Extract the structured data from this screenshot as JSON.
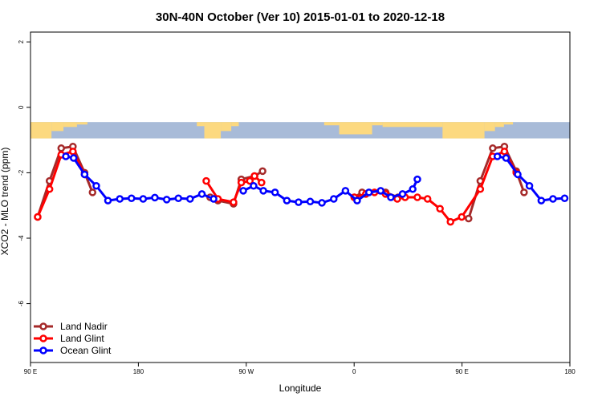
{
  "chart_data": {
    "type": "line",
    "title": "30N-40N October (Ver 10)   2015-01-01 to 2020-12-18",
    "xlabel": "Longitude",
    "ylabel": "XCO2 - MLO trend (ppm)",
    "xlim": [
      90,
      450
    ],
    "ylim": [
      -7.8,
      2.3
    ],
    "x_ticks": [
      {
        "value": 90,
        "label": "90 E"
      },
      {
        "value": 162,
        "label": "180"
      },
      {
        "value": 234,
        "label": "90 W"
      },
      {
        "value": 306,
        "label": "0"
      },
      {
        "value": 378,
        "label": "90 E"
      },
      {
        "value": 450,
        "label": "180"
      }
    ],
    "y_ticks": [
      2,
      0,
      -2,
      -4,
      -6
    ],
    "map_strip": {
      "y_top": -0.45,
      "y_bottom": -0.95,
      "ocean_color": "#a8bbd8",
      "land_color": "#fcd980"
    },
    "legend_position": "bottom-left",
    "series": [
      {
        "name": "Land Nadir",
        "color": "#a52a2a",
        "points": [
          [
            94.8,
            -3.35
          ],
          [
            102.7,
            -2.25
          ],
          [
            110.5,
            -1.25
          ],
          [
            118.3,
            -1.2
          ],
          [
            126.1,
            -2.0
          ],
          [
            131.4,
            -2.6
          ],
          [
            209.9,
            -2.75
          ],
          [
            215.1,
            -2.85
          ],
          [
            225.5,
            -2.95
          ],
          [
            230.7,
            -2.2
          ],
          [
            239.5,
            -2.1
          ],
          [
            244.9,
            -1.95
          ],
          [
            306.1,
            -2.75
          ],
          [
            311.3,
            -2.6
          ],
          [
            327.0,
            -2.6
          ],
          [
            335.3,
            -2.75
          ],
          [
            382.4,
            -3.4
          ],
          [
            390.2,
            -2.25
          ],
          [
            398.5,
            -1.25
          ],
          [
            406.3,
            -1.2
          ],
          [
            414.2,
            -1.95
          ],
          [
            419.4,
            -2.6
          ]
        ]
      },
      {
        "name": "Land Glint",
        "color": "#ff0000",
        "points": [
          [
            94.8,
            -3.35
          ],
          [
            102.7,
            -2.5
          ],
          [
            110.5,
            -1.45
          ],
          [
            118.3,
            -1.35
          ],
          [
            126.1,
            -2.05
          ],
          [
            207.3,
            -2.25
          ],
          [
            215.1,
            -2.8
          ],
          [
            225.5,
            -2.9
          ],
          [
            230.7,
            -2.3
          ],
          [
            236.4,
            -2.25
          ],
          [
            239.5,
            -2.1
          ],
          [
            244.2,
            -2.3
          ],
          [
            306.1,
            -2.75
          ],
          [
            313.8,
            -2.65
          ],
          [
            319.6,
            -2.6
          ],
          [
            327.0,
            -2.65
          ],
          [
            334.8,
            -2.8
          ],
          [
            340.0,
            -2.75
          ],
          [
            348.2,
            -2.75
          ],
          [
            355.0,
            -2.8
          ],
          [
            363.3,
            -3.1
          ],
          [
            370.3,
            -3.5
          ],
          [
            377.8,
            -3.35
          ],
          [
            390.2,
            -2.5
          ],
          [
            398.5,
            -1.5
          ],
          [
            406.3,
            -1.35
          ],
          [
            414.2,
            -2.0
          ]
        ]
      },
      {
        "name": "Ocean Glint",
        "color": "#0000ff",
        "points": [
          [
            113.6,
            -1.5
          ],
          [
            118.8,
            -1.55
          ],
          [
            126.1,
            -2.05
          ],
          [
            133.9,
            -2.4
          ],
          [
            141.7,
            -2.85
          ],
          [
            149.6,
            -2.8
          ],
          [
            157.4,
            -2.78
          ],
          [
            165.2,
            -2.8
          ],
          [
            173.0,
            -2.76
          ],
          [
            180.9,
            -2.82
          ],
          [
            188.7,
            -2.78
          ],
          [
            196.5,
            -2.8
          ],
          [
            204.4,
            -2.65
          ],
          [
            212.2,
            -2.8
          ],
          [
            232.0,
            -2.55
          ],
          [
            238.9,
            -2.4
          ],
          [
            245.4,
            -2.55
          ],
          [
            253.2,
            -2.6
          ],
          [
            261.1,
            -2.85
          ],
          [
            268.9,
            -2.9
          ],
          [
            276.7,
            -2.88
          ],
          [
            284.5,
            -2.92
          ],
          [
            292.4,
            -2.8
          ],
          [
            300.2,
            -2.55
          ],
          [
            308.0,
            -2.85
          ],
          [
            315.9,
            -2.6
          ],
          [
            323.7,
            -2.55
          ],
          [
            330.5,
            -2.75
          ],
          [
            338.3,
            -2.65
          ],
          [
            345.1,
            -2.5
          ],
          [
            348.2,
            -2.2
          ],
          [
            401.6,
            -1.5
          ],
          [
            407.4,
            -1.55
          ],
          [
            415.2,
            -2.05
          ],
          [
            423.0,
            -2.4
          ],
          [
            430.9,
            -2.85
          ],
          [
            438.7,
            -2.8
          ],
          [
            446.5,
            -2.78
          ]
        ]
      }
    ]
  }
}
